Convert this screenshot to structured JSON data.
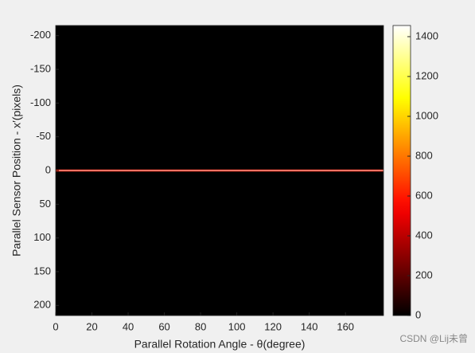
{
  "chart_data": {
    "type": "heatmap",
    "xlabel": "Parallel Rotation Angle - θ(degree)",
    "ylabel": "Parallel Sensor Position - x′(pixels)",
    "xlim": [
      0,
      181
    ],
    "xticks": [
      0,
      20,
      40,
      60,
      80,
      100,
      120,
      140,
      160
    ],
    "ylim": [
      -215,
      215
    ],
    "yticks": [
      -200,
      -150,
      -100,
      -50,
      0,
      50,
      100,
      150,
      200
    ],
    "y_reversed": true,
    "y": [
      -1,
      0,
      1
    ],
    "values": [
      600,
      1456,
      600
    ],
    "colormap": "hot",
    "clim": [
      0,
      1456
    ],
    "cticks": [
      0,
      200,
      400,
      600,
      800,
      1000,
      1200,
      1400
    ],
    "annotation": "CSDN @Lij未曾"
  }
}
